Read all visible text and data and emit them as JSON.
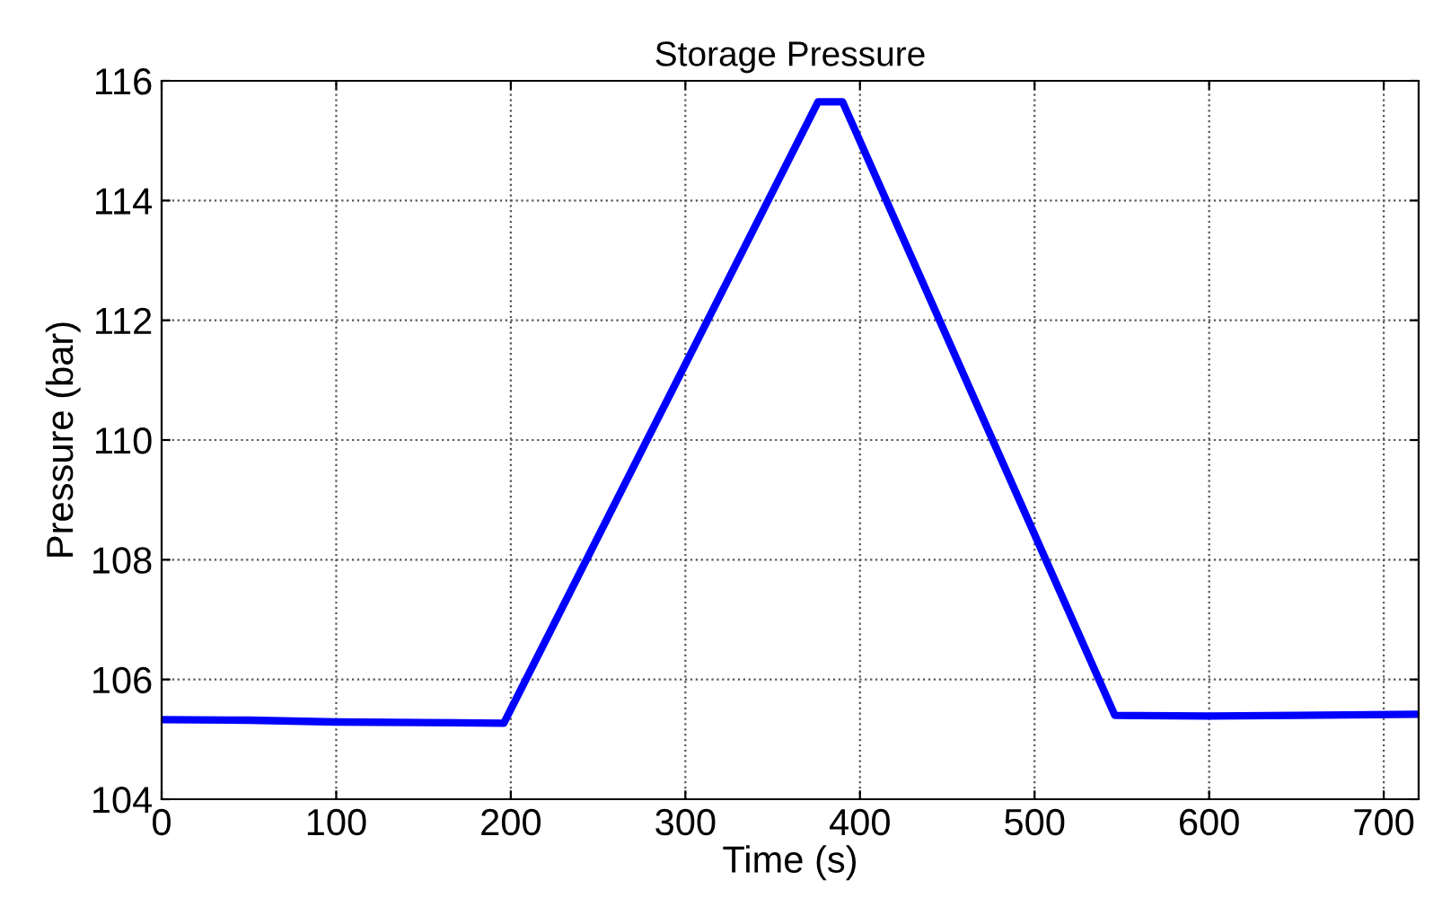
{
  "chart_data": {
    "type": "line",
    "title": "Storage Pressure",
    "xlabel": "Time (s)",
    "ylabel": "Pressure (bar)",
    "series": [
      {
        "color": "#0000ff",
        "x": [
          0,
          50,
          100,
          150,
          196,
          376,
          390,
          546,
          600,
          650,
          720
        ],
        "values": [
          105.33,
          105.32,
          105.29,
          105.28,
          105.27,
          115.65,
          115.65,
          105.4,
          105.39,
          105.4,
          105.42
        ]
      }
    ],
    "xlim": [
      0,
      720
    ],
    "ylim": [
      104,
      116
    ],
    "xticks": [
      0,
      100,
      200,
      300,
      400,
      500,
      600,
      700
    ],
    "yticks": [
      104,
      106,
      108,
      110,
      112,
      114,
      116
    ],
    "grid": true,
    "line_style": "solid",
    "marker": "none"
  }
}
